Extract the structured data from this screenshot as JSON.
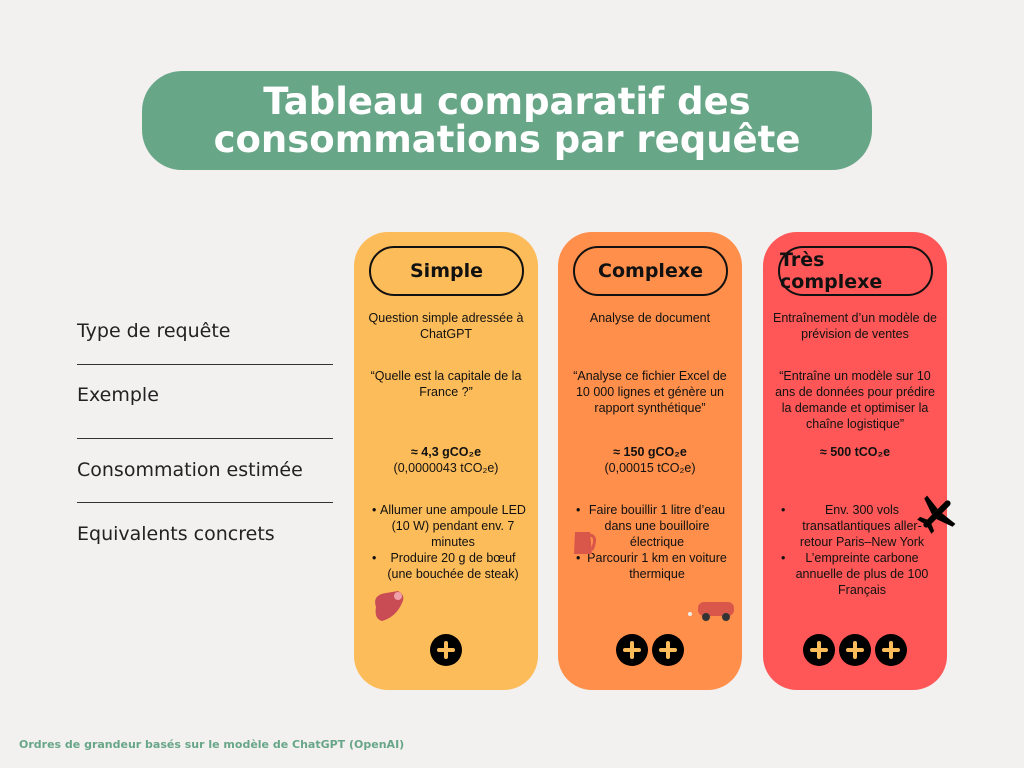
{
  "title": {
    "line1": "Tableau comparatif des",
    "line2": "consommations par requête",
    "color": "#68A688"
  },
  "rows": [
    "Type de requête",
    "Exemple",
    "Consommation estimée",
    "Equivalents concrets"
  ],
  "columns": [
    {
      "label": "Simple",
      "color": "#FDBC5A",
      "type": "Question simple adressée à ChatGPT",
      "example": "“Quelle est la capitale de la France ?”",
      "consumption": "≈ 4,3 gCO₂e",
      "consumption_t": "(0,0000043 tCO₂e)",
      "equivalents": [
        "Allumer une ampoule LED (10 W) pendant env. 7 minutes",
        "Produire 20 g de bœuf (une bouchée de steak)"
      ],
      "icon": "steak-icon",
      "level": 1
    },
    {
      "label": "Complexe",
      "color": "#FF8F4B",
      "type": "Analyse de document",
      "example": "“Analyse ce fichier Excel de 10 000 lignes et génère un rapport synthétique”",
      "consumption": "≈ 150 gCO₂e",
      "consumption_t": "(0,00015 tCO₂e)",
      "equivalents": [
        "Faire bouillir 1 litre d’eau dans une bouilloire électrique",
        "Parcourir 1 km en voiture thermique"
      ],
      "icon": "kettle-car-icon",
      "level": 2
    },
    {
      "label": "Très complexe",
      "color": "#FF5757",
      "type": "Entraînement d’un modèle de prévision de ventes",
      "example": "“Entraîne un modèle sur 10 ans de données pour prédire la demande et optimiser la chaîne logistique”",
      "consumption": "≈ 500 tCO₂e",
      "consumption_t": "",
      "equivalents": [
        "Env. 300 vols transatlantiques aller-retour Paris–New York",
        "L’empreinte carbone annuelle de plus de 100 Français"
      ],
      "icon": "airplane-icon",
      "level": 3
    }
  ],
  "footer": "Ordres de grandeur basés sur le modèle de ChatGPT (OpenAI)"
}
